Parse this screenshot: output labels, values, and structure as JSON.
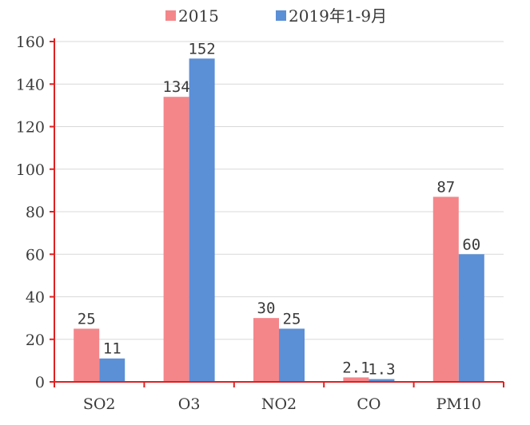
{
  "chart_data": {
    "type": "bar",
    "title": "",
    "xlabel": "",
    "ylabel": "",
    "ylim": [
      0,
      160
    ],
    "yticks": [
      0,
      20,
      40,
      60,
      80,
      100,
      120,
      140,
      160
    ],
    "grid": true,
    "legend_position": "top",
    "categories": [
      "SO2",
      "O3",
      "NO2",
      "CO",
      "PM10"
    ],
    "series": [
      {
        "name": "2015",
        "color": "#f4868a",
        "values": [
          25,
          134,
          30,
          2.1,
          87
        ],
        "labels": [
          "25",
          "134",
          "30",
          "2.1",
          "87"
        ]
      },
      {
        "name": "2019年1-9月",
        "color": "#5b8fd6",
        "values": [
          11,
          152,
          25,
          1.3,
          60
        ],
        "labels": [
          "11",
          "152",
          "25",
          "1.3",
          "60"
        ]
      }
    ],
    "axis_color": "#e02020",
    "grid_color": "#d9d9d9"
  }
}
